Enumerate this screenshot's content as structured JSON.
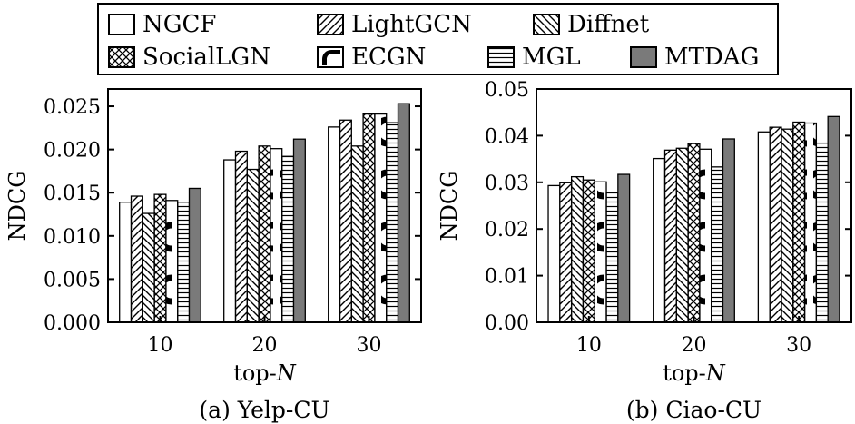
{
  "legend": {
    "entries": [
      {
        "name": "NGCF",
        "pattern": "empty"
      },
      {
        "name": "LightGCN",
        "pattern": "diag-right"
      },
      {
        "name": "Diffnet",
        "pattern": "diag-left"
      },
      {
        "name": "SocialLGN",
        "pattern": "crosshatch"
      },
      {
        "name": "ECGN",
        "pattern": "bold-arc"
      },
      {
        "name": "MGL",
        "pattern": "horizontal"
      },
      {
        "name": "MTDAG",
        "pattern": "solid-gray"
      }
    ]
  },
  "chart_data": [
    {
      "type": "bar",
      "caption": "(a) Yelp-CU",
      "xlabel_prefix": "top-",
      "xlabel_var": "N",
      "ylabel": "NDCG",
      "categories": [
        "10",
        "20",
        "30"
      ],
      "ylim": [
        0,
        0.027
      ],
      "yticks": [
        "0.000",
        "0.005",
        "0.010",
        "0.015",
        "0.020",
        "0.025"
      ],
      "ytick_values": [
        0,
        0.005,
        0.01,
        0.015,
        0.02,
        0.025
      ],
      "series": [
        {
          "name": "NGCF",
          "values": [
            0.0139,
            0.0188,
            0.0226
          ]
        },
        {
          "name": "LightGCN",
          "values": [
            0.0146,
            0.0198,
            0.0234
          ]
        },
        {
          "name": "Diffnet",
          "values": [
            0.0126,
            0.0177,
            0.0204
          ]
        },
        {
          "name": "SocialLGN",
          "values": [
            0.0148,
            0.0204,
            0.0241
          ]
        },
        {
          "name": "ECGN",
          "values": [
            0.0141,
            0.0201,
            0.0241
          ]
        },
        {
          "name": "MGL",
          "values": [
            0.0139,
            0.0192,
            0.0231
          ]
        },
        {
          "name": "MTDAG",
          "values": [
            0.0155,
            0.0212,
            0.0253
          ]
        }
      ]
    },
    {
      "type": "bar",
      "caption": "(b) Ciao-CU",
      "xlabel_prefix": "top-",
      "xlabel_var": "N",
      "ylabel": "NDCG",
      "categories": [
        "10",
        "20",
        "30"
      ],
      "ylim": [
        0,
        0.05
      ],
      "yticks": [
        "0.00",
        "0.01",
        "0.02",
        "0.03",
        "0.04",
        "0.05"
      ],
      "ytick_values": [
        0,
        0.01,
        0.02,
        0.03,
        0.04,
        0.05
      ],
      "series": [
        {
          "name": "NGCF",
          "values": [
            0.0293,
            0.0351,
            0.0408
          ]
        },
        {
          "name": "LightGCN",
          "values": [
            0.0299,
            0.0369,
            0.0418
          ]
        },
        {
          "name": "Diffnet",
          "values": [
            0.0312,
            0.0373,
            0.0414
          ]
        },
        {
          "name": "SocialLGN",
          "values": [
            0.0305,
            0.0383,
            0.0429
          ]
        },
        {
          "name": "ECGN",
          "values": [
            0.0301,
            0.0371,
            0.0427
          ]
        },
        {
          "name": "MGL",
          "values": [
            0.0278,
            0.0333,
            0.0384
          ]
        },
        {
          "name": "MTDAG",
          "values": [
            0.0317,
            0.0393,
            0.0441
          ]
        }
      ]
    }
  ]
}
